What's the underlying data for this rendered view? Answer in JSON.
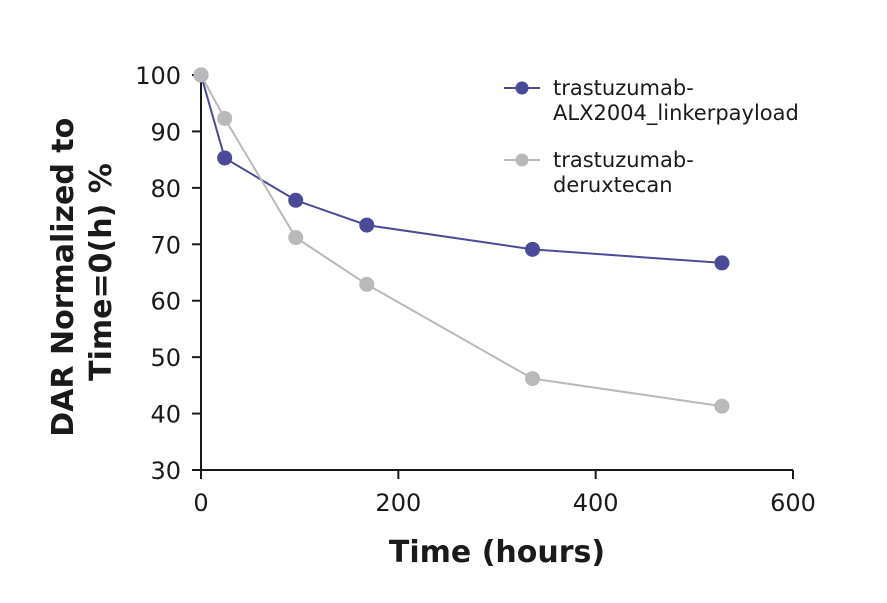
{
  "chart_data": {
    "type": "line",
    "title": "",
    "xlabel": "Time (hours)",
    "ylabel": [
      "DAR Normalized to",
      "Time=0(h) %"
    ],
    "xlim": [
      0,
      600
    ],
    "ylim": [
      30,
      100
    ],
    "xticks": [
      0,
      200,
      400,
      600
    ],
    "yticks": [
      30,
      40,
      50,
      60,
      70,
      80,
      90,
      100
    ],
    "grid": false,
    "legend_position": "top-right",
    "series": [
      {
        "name_lines": [
          "trastuzumab-",
          "ALX2004_linkerpayload"
        ],
        "color": "#4a4a99",
        "x": [
          0,
          24,
          96,
          168,
          336,
          528
        ],
        "y": [
          100,
          85.3,
          77.8,
          73.4,
          69.1,
          66.7
        ]
      },
      {
        "name_lines": [
          "trastuzumab-",
          "deruxtecan"
        ],
        "color": "#b9b9bc",
        "x": [
          0,
          24,
          96,
          168,
          336,
          528
        ],
        "y": [
          100,
          92.3,
          71.2,
          62.9,
          46.2,
          41.3
        ]
      }
    ]
  }
}
